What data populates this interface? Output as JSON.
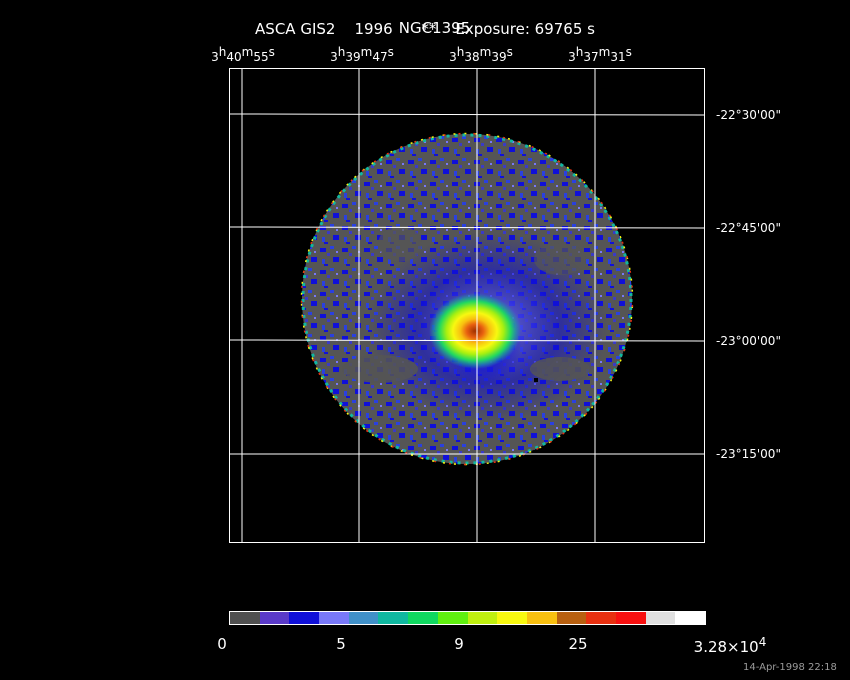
{
  "header": {
    "object": "NGC1395",
    "instrument": "ASCA GIS2",
    "year": "1996",
    "flag": "**",
    "exposure": "Exposure: 69765 s"
  },
  "ra_axis": {
    "labels": [
      {
        "h": "3",
        "m": "40",
        "s": "55"
      },
      {
        "h": "3",
        "m": "39",
        "s": "47"
      },
      {
        "h": "3",
        "m": "38",
        "s": "39"
      },
      {
        "h": "3",
        "m": "37",
        "s": "31"
      }
    ]
  },
  "dec_axis": {
    "labels": [
      "-22°30'00\"",
      "-22°45'00\"",
      "-23°00'00\"",
      "-23°15'00\""
    ]
  },
  "colorbar": {
    "colors": [
      "#505050",
      "#5a3ac8",
      "#1010d8",
      "#7878f8",
      "#4090c8",
      "#10b8a0",
      "#10d860",
      "#60f010",
      "#c0f010",
      "#f8f810",
      "#f8c010",
      "#b86010",
      "#e83010",
      "#f81010",
      "#e0e0e0",
      "#ffffff"
    ],
    "tick_labels": [
      "0",
      "5",
      "9",
      "25"
    ],
    "max_label": {
      "mantissa": "3.28×10",
      "exponent": "4"
    }
  },
  "image": {
    "field_of_view": "circular",
    "background_color": "#555555",
    "source": "bright extended X-ray emission near center",
    "peak_color": "#c04000"
  },
  "timestamp": "14-Apr-1998 22:18"
}
